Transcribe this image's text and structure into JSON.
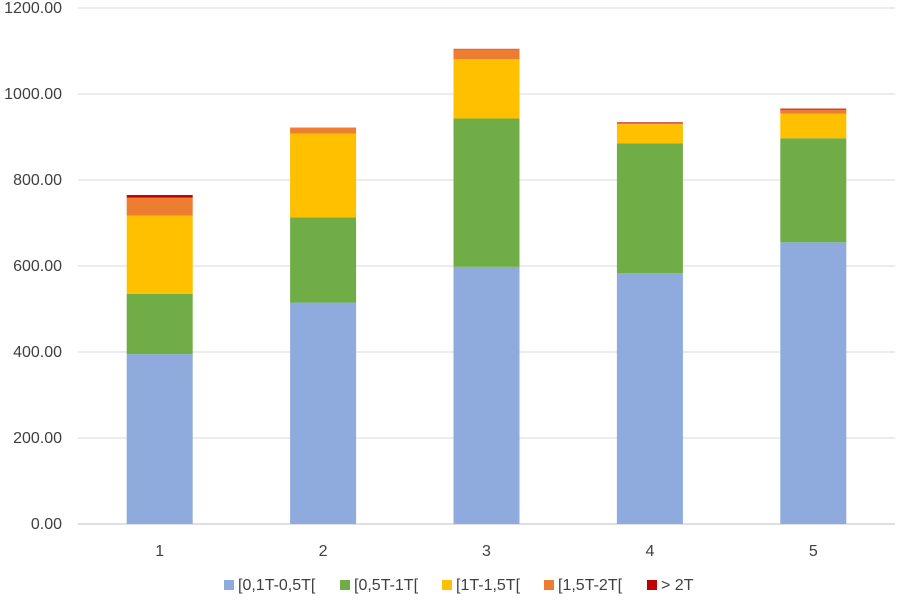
{
  "chart_data": {
    "type": "bar",
    "stacked": true,
    "categories": [
      "1",
      "2",
      "3",
      "4",
      "5"
    ],
    "series": [
      {
        "name": "[0,1T-0,5T[",
        "color": "#8FAADC",
        "values": [
          395,
          515,
          598,
          583,
          655
        ]
      },
      {
        "name": "[0,5T-1T[",
        "color": "#70AD47",
        "values": [
          140,
          198,
          345,
          302,
          242
        ]
      },
      {
        "name": "[1T-1,5T[",
        "color": "#FFC000",
        "values": [
          182,
          195,
          138,
          45,
          57
        ]
      },
      {
        "name": "[1,5T-2T[",
        "color": "#ED7D31",
        "values": [
          42,
          14,
          23,
          2,
          10
        ]
      },
      {
        "name": "> 2T",
        "color": "#C00000",
        "values": [
          6,
          0,
          1,
          2,
          2
        ]
      }
    ],
    "ylim": [
      0,
      1200
    ],
    "yticks": [
      "0.00",
      "200.00",
      "400.00",
      "600.00",
      "800.00",
      "1000.00",
      "1200.00"
    ],
    "ytick_values": [
      0,
      200,
      400,
      600,
      800,
      1000,
      1200
    ],
    "grid": true,
    "legend_position": "bottom"
  }
}
